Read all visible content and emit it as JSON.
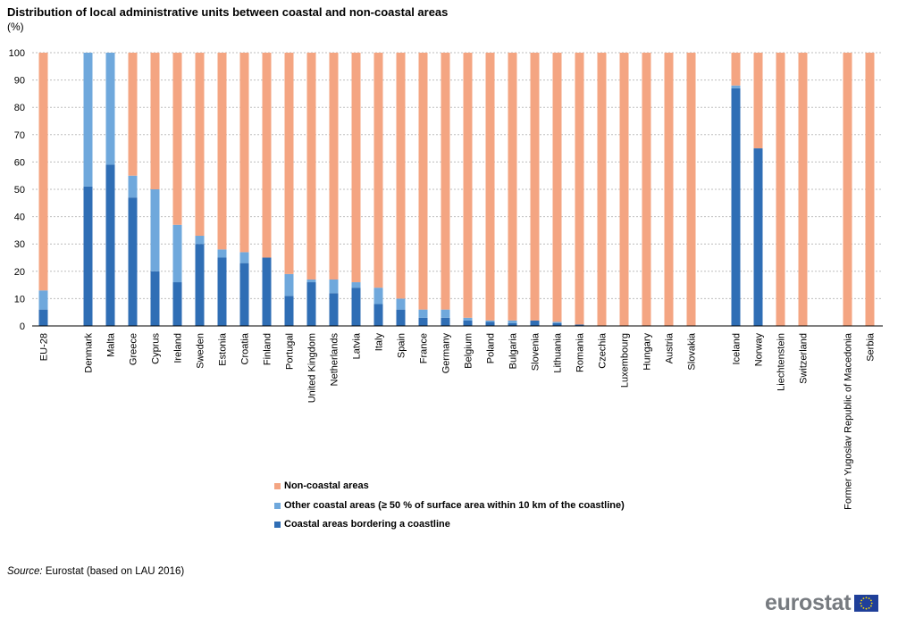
{
  "title": "Distribution of local administrative units between coastal and non-coastal areas",
  "unit": "(%)",
  "legend": [
    {
      "label": "Non-coastal areas",
      "color": "#f4a582"
    },
    {
      "label": "Other coastal areas (≥ 50 % of surface area within 10 km of the coastline)",
      "color": "#6fa8dc"
    },
    {
      "label": "Coastal areas bordering a coastline",
      "color": "#2f6eb5"
    }
  ],
  "source": {
    "label": "Source:",
    "text": "Eurostat (based on LAU 2016)"
  },
  "logo_text": "eurostat",
  "chart_data": {
    "type": "bar",
    "stacked": true,
    "categories": [
      "EU-28",
      "Denmark",
      "Malta",
      "Greece",
      "Cyprus",
      "Ireland",
      "Sweden",
      "Estonia",
      "Croatia",
      "Finland",
      "Portugal",
      "United Kingdom",
      "Netherlands",
      "Latvia",
      "Italy",
      "Spain",
      "France",
      "Germany",
      "Belgium",
      "Poland",
      "Bulgaria",
      "Slovenia",
      "Lithuania",
      "Romania",
      "Czechia",
      "Luxembourg",
      "Hungary",
      "Austria",
      "Slovakia",
      "Iceland",
      "Norway",
      "Liechtenstein",
      "Switzerland",
      "Former Yugoslav Republic of Macedonia",
      "Serbia"
    ],
    "groups": [
      1,
      28,
      4,
      2
    ],
    "series": [
      {
        "name": "Coastal areas bordering a coastline",
        "color": "#2f6eb5",
        "values": [
          6,
          51,
          59,
          47,
          20,
          16,
          30,
          25,
          23,
          25,
          11,
          16,
          12,
          14,
          8,
          6,
          3,
          3,
          2,
          1.5,
          1,
          2,
          1,
          0.5,
          0,
          0,
          0,
          0,
          0,
          87,
          65,
          0,
          0,
          0,
          0
        ]
      },
      {
        "name": "Other coastal areas (≥ 50 % of surface area within 10 km of the coastline)",
        "color": "#6fa8dc",
        "values": [
          7,
          49,
          41,
          8,
          30,
          21,
          3,
          3,
          4,
          0,
          8,
          1,
          5,
          2,
          6,
          4,
          3,
          3,
          1,
          0.5,
          1,
          0,
          0.5,
          0,
          0,
          0,
          0,
          0,
          0,
          1,
          0,
          0,
          0,
          0,
          0
        ]
      },
      {
        "name": "Non-coastal areas",
        "color": "#f4a582",
        "values": [
          87,
          0,
          0,
          45,
          50,
          63,
          67,
          72,
          73,
          75,
          81,
          83,
          83,
          84,
          86,
          90,
          94,
          94,
          97,
          98,
          98,
          98,
          98.5,
          99.5,
          100,
          100,
          100,
          100,
          100,
          12,
          35,
          100,
          100,
          100,
          100
        ]
      }
    ],
    "ylim": [
      0,
      100
    ],
    "yticks": [
      0,
      10,
      20,
      30,
      40,
      50,
      60,
      70,
      80,
      90,
      100
    ],
    "grid": true,
    "legend_position": "bottom-center"
  }
}
